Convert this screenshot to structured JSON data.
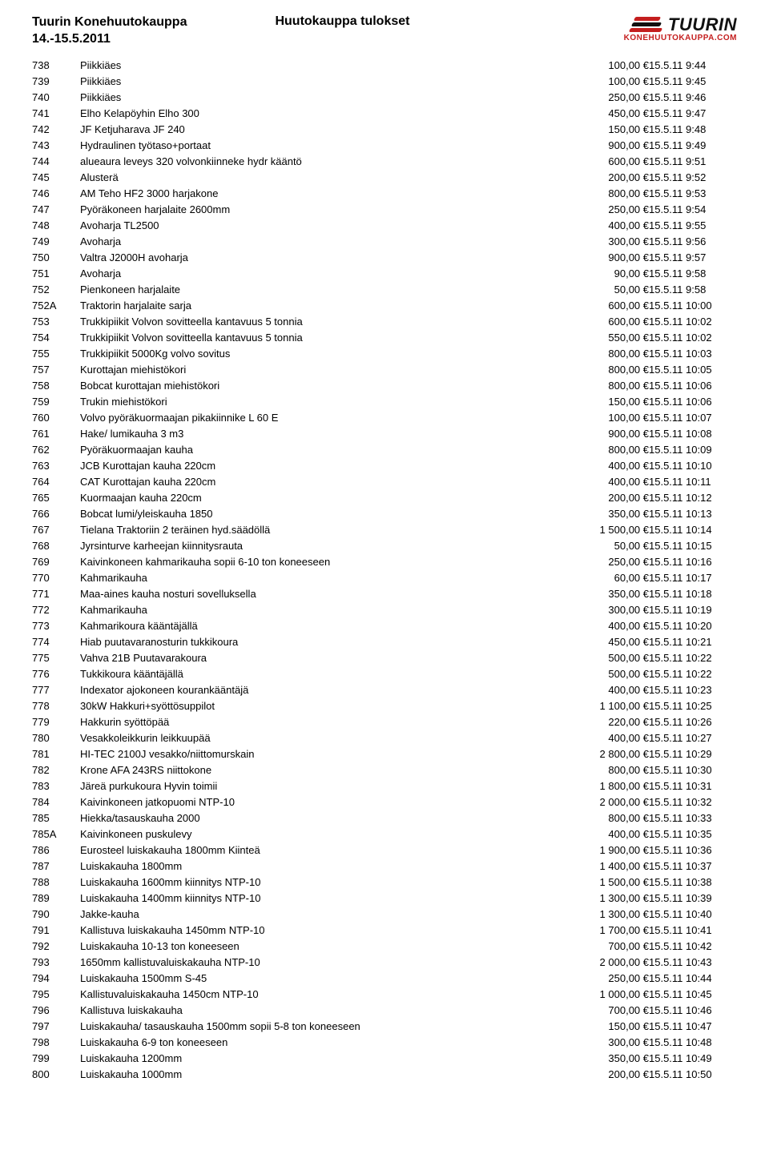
{
  "header": {
    "title_line1": "Tuurin Konehuutokauppa",
    "title_line2": "14.-15.5.2011",
    "center_title": "Huutokauppa tulokset",
    "logo_main": "TUURIN",
    "logo_sub": "KONEHUUTOKAUPPA.COM"
  },
  "style": {
    "logo_red": "#c41e1e",
    "logo_black": "#111111",
    "body_font_size": 13,
    "header_font_size": 16
  },
  "rows": [
    {
      "id": "738",
      "desc": "Piikkiäes",
      "price": "100,00 €",
      "ts": "15.5.11 9:44"
    },
    {
      "id": "739",
      "desc": "Piikkiäes",
      "price": "100,00 €",
      "ts": "15.5.11 9:45"
    },
    {
      "id": "740",
      "desc": "Piikkiäes",
      "price": "250,00 €",
      "ts": "15.5.11 9:46"
    },
    {
      "id": "741",
      "desc": "Elho Kelapöyhin Elho 300",
      "price": "450,00 €",
      "ts": "15.5.11 9:47"
    },
    {
      "id": "742",
      "desc": "JF Ketjuharava JF 240",
      "price": "150,00 €",
      "ts": "15.5.11 9:48"
    },
    {
      "id": "743",
      "desc": "Hydraulinen työtaso+portaat",
      "price": "900,00 €",
      "ts": "15.5.11 9:49"
    },
    {
      "id": "744",
      "desc": "alueaura leveys 320  volvonkiinneke hydr kääntö",
      "price": "600,00 €",
      "ts": "15.5.11 9:51"
    },
    {
      "id": "745",
      "desc": "Alusterä",
      "price": "200,00 €",
      "ts": "15.5.11 9:52"
    },
    {
      "id": "746",
      "desc": "AM Teho HF2 3000 harjakone",
      "price": "800,00 €",
      "ts": "15.5.11 9:53"
    },
    {
      "id": "747",
      "desc": "Pyöräkoneen harjalaite 2600mm",
      "price": "250,00 €",
      "ts": "15.5.11 9:54"
    },
    {
      "id": "748",
      "desc": "Avoharja TL2500",
      "price": "400,00 €",
      "ts": "15.5.11 9:55"
    },
    {
      "id": "749",
      "desc": "Avoharja",
      "price": "300,00 €",
      "ts": "15.5.11 9:56"
    },
    {
      "id": "750",
      "desc": "Valtra J2000H avoharja",
      "price": "900,00 €",
      "ts": "15.5.11 9:57"
    },
    {
      "id": "751",
      "desc": "Avoharja",
      "price": "90,00 €",
      "ts": "15.5.11 9:58"
    },
    {
      "id": "752",
      "desc": "Pienkoneen harjalaite",
      "price": "50,00 €",
      "ts": "15.5.11 9:58"
    },
    {
      "id": "752A",
      "desc": "Traktorin harjalaite sarja",
      "price": "600,00 €",
      "ts": "15.5.11 10:00"
    },
    {
      "id": "753",
      "desc": "Trukkipiikit Volvon sovitteella kantavuus 5 tonnia",
      "price": "600,00 €",
      "ts": "15.5.11 10:02"
    },
    {
      "id": "754",
      "desc": "Trukkipiikit Volvon sovitteella kantavuus 5 tonnia",
      "price": "550,00 €",
      "ts": "15.5.11 10:02"
    },
    {
      "id": "755",
      "desc": "Trukkipiikit 5000Kg volvo sovitus",
      "price": "800,00 €",
      "ts": "15.5.11 10:03"
    },
    {
      "id": "757",
      "desc": "Kurottajan miehistökori",
      "price": "800,00 €",
      "ts": "15.5.11 10:05"
    },
    {
      "id": "758",
      "desc": "Bobcat kurottajan miehistökori",
      "price": "800,00 €",
      "ts": "15.5.11 10:06"
    },
    {
      "id": "759",
      "desc": "Trukin miehistökori",
      "price": "150,00 €",
      "ts": "15.5.11 10:06"
    },
    {
      "id": "760",
      "desc": "Volvo pyöräkuormaajan pikakiinnike L 60 E",
      "price": "100,00 €",
      "ts": "15.5.11 10:07"
    },
    {
      "id": "761",
      "desc": "Hake/ lumikauha 3 m3",
      "price": "900,00 €",
      "ts": "15.5.11 10:08"
    },
    {
      "id": "762",
      "desc": "Pyöräkuormaajan kauha",
      "price": "800,00 €",
      "ts": "15.5.11 10:09"
    },
    {
      "id": "763",
      "desc": "JCB Kurottajan kauha 220cm",
      "price": "400,00 €",
      "ts": "15.5.11 10:10"
    },
    {
      "id": "764",
      "desc": "CAT Kurottajan kauha 220cm",
      "price": "400,00 €",
      "ts": "15.5.11 10:11"
    },
    {
      "id": "765",
      "desc": "Kuormaajan kauha 220cm",
      "price": "200,00 €",
      "ts": "15.5.11 10:12"
    },
    {
      "id": "766",
      "desc": "Bobcat lumi/yleiskauha 1850",
      "price": "350,00 €",
      "ts": "15.5.11 10:13"
    },
    {
      "id": "767",
      "desc": "Tielana Traktoriin 2 teräinen hyd.säädöllä",
      "price": "1 500,00 €",
      "ts": "15.5.11 10:14"
    },
    {
      "id": "768",
      "desc": "Jyrsinturve karheejan kiinnitysrauta",
      "price": "50,00 €",
      "ts": "15.5.11 10:15"
    },
    {
      "id": "769",
      "desc": "Kaivinkoneen kahmarikauha sopii 6-10 ton koneeseen",
      "price": "250,00 €",
      "ts": "15.5.11 10:16"
    },
    {
      "id": "770",
      "desc": "Kahmarikauha",
      "price": "60,00 €",
      "ts": "15.5.11 10:17"
    },
    {
      "id": "771",
      "desc": "Maa-aines kauha nosturi sovelluksella",
      "price": "350,00 €",
      "ts": "15.5.11 10:18"
    },
    {
      "id": "772",
      "desc": "Kahmarikauha",
      "price": "300,00 €",
      "ts": "15.5.11 10:19"
    },
    {
      "id": "773",
      "desc": "Kahmarikoura kääntäjällä",
      "price": "400,00 €",
      "ts": "15.5.11 10:20"
    },
    {
      "id": "774",
      "desc": "Hiab  puutavaranosturin tukkikoura",
      "price": "450,00 €",
      "ts": "15.5.11 10:21"
    },
    {
      "id": "775",
      "desc": "Vahva 21B Puutavarakoura",
      "price": "500,00 €",
      "ts": "15.5.11 10:22"
    },
    {
      "id": "776",
      "desc": "Tukkikoura kääntäjällä",
      "price": "500,00 €",
      "ts": "15.5.11 10:22"
    },
    {
      "id": "777",
      "desc": "Indexator ajokoneen kourankääntäjä",
      "price": "400,00 €",
      "ts": "15.5.11 10:23"
    },
    {
      "id": "778",
      "desc": "30kW Hakkuri+syöttösuppilot",
      "price": "1 100,00 €",
      "ts": "15.5.11 10:25"
    },
    {
      "id": "779",
      "desc": "Hakkurin syöttöpää",
      "price": "220,00 €",
      "ts": "15.5.11 10:26"
    },
    {
      "id": "780",
      "desc": "Vesakkoleikkurin leikkuupää",
      "price": "400,00 €",
      "ts": "15.5.11 10:27"
    },
    {
      "id": "781",
      "desc": "HI-TEC 2100J vesakko/niittomurskain",
      "price": "2 800,00 €",
      "ts": "15.5.11 10:29"
    },
    {
      "id": "782",
      "desc": "Krone AFA 243RS niittokone",
      "price": "800,00 €",
      "ts": "15.5.11 10:30"
    },
    {
      "id": "783",
      "desc": "Järeä purkukoura Hyvin toimii",
      "price": "1 800,00 €",
      "ts": "15.5.11 10:31"
    },
    {
      "id": "784",
      "desc": "Kaivinkoneen jatkopuomi NTP-10",
      "price": "2 000,00 €",
      "ts": "15.5.11 10:32"
    },
    {
      "id": "785",
      "desc": "Hiekka/tasauskauha  2000",
      "price": "800,00 €",
      "ts": "15.5.11 10:33"
    },
    {
      "id": "785A",
      "desc": "Kaivinkoneen puskulevy",
      "price": "400,00 €",
      "ts": "15.5.11 10:35"
    },
    {
      "id": "786",
      "desc": "Eurosteel luiskakauha 1800mm Kiinteä",
      "price": "1 900,00 €",
      "ts": "15.5.11 10:36"
    },
    {
      "id": "787",
      "desc": "Luiskakauha 1800mm",
      "price": "1 400,00 €",
      "ts": "15.5.11 10:37"
    },
    {
      "id": "788",
      "desc": "Luiskakauha 1600mm kiinnitys NTP-10",
      "price": "1 500,00 €",
      "ts": "15.5.11 10:38"
    },
    {
      "id": "789",
      "desc": "Luiskakauha 1400mm kiinnitys NTP-10",
      "price": "1 300,00 €",
      "ts": "15.5.11 10:39"
    },
    {
      "id": "790",
      "desc": "Jakke-kauha",
      "price": "1 300,00 €",
      "ts": "15.5.11 10:40"
    },
    {
      "id": "791",
      "desc": "Kallistuva luiskakauha 1450mm NTP-10",
      "price": "1 700,00 €",
      "ts": "15.5.11 10:41"
    },
    {
      "id": "792",
      "desc": "Luiskakauha 10-13 ton koneeseen",
      "price": "700,00 €",
      "ts": "15.5.11 10:42"
    },
    {
      "id": "793",
      "desc": "1650mm kallistuvaluiskakauha NTP-10",
      "price": "2 000,00 €",
      "ts": "15.5.11 10:43"
    },
    {
      "id": "794",
      "desc": "Luiskakauha 1500mm S-45",
      "price": "250,00 €",
      "ts": "15.5.11 10:44"
    },
    {
      "id": "795",
      "desc": "Kallistuvaluiskakauha 1450cm NTP-10",
      "price": "1 000,00 €",
      "ts": "15.5.11 10:45"
    },
    {
      "id": "796",
      "desc": "Kallistuva luiskakauha",
      "price": "700,00 €",
      "ts": "15.5.11 10:46"
    },
    {
      "id": "797",
      "desc": "Luiskakauha/ tasauskauha 1500mm sopii 5-8 ton koneeseen",
      "price": "150,00 €",
      "ts": "15.5.11 10:47"
    },
    {
      "id": "798",
      "desc": "Luiskakauha 6-9 ton koneeseen",
      "price": "300,00 €",
      "ts": "15.5.11 10:48"
    },
    {
      "id": "799",
      "desc": "Luiskakauha 1200mm",
      "price": "350,00 €",
      "ts": "15.5.11 10:49"
    },
    {
      "id": "800",
      "desc": "Luiskakauha 1000mm",
      "price": "200,00 €",
      "ts": "15.5.11 10:50"
    }
  ]
}
